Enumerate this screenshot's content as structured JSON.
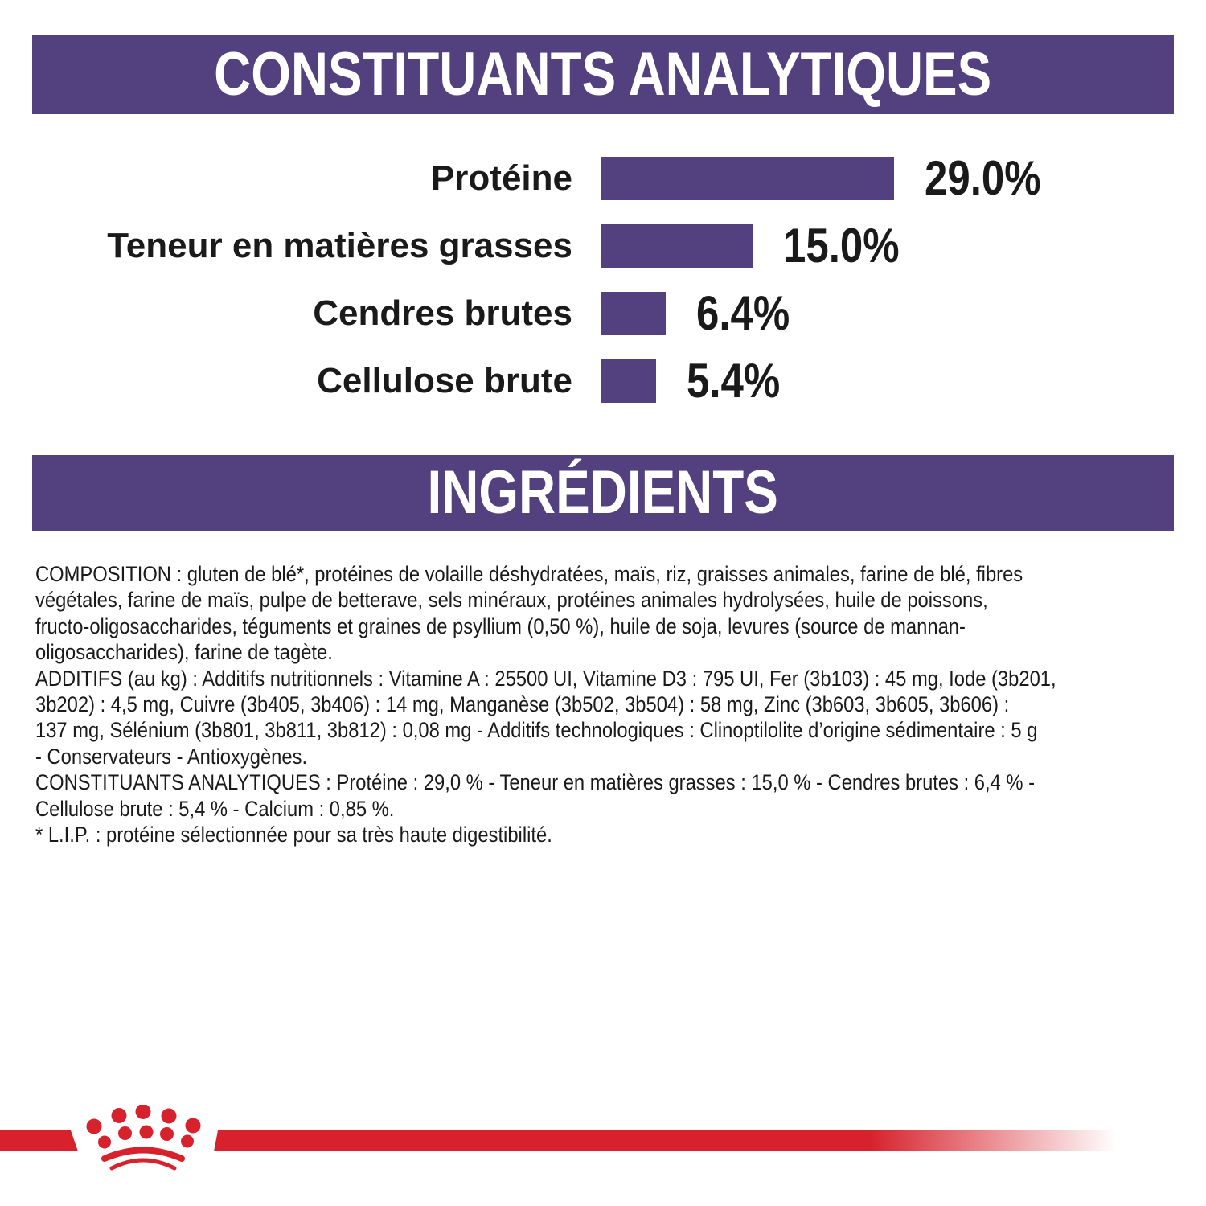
{
  "colors": {
    "purple": "#53407E",
    "red": "#D7222D",
    "text": "#1A1A1A"
  },
  "sections": {
    "analytiques_title": "CONSTITUANTS ANALYTIQUES",
    "ingredients_title": "INGRÉDIENTS"
  },
  "chart_data": {
    "type": "bar",
    "orientation": "horizontal",
    "title": "CONSTITUANTS ANALYTIQUES",
    "categories": [
      "Protéine",
      "Teneur en matières grasses",
      "Cendres brutes",
      "Cellulose brute"
    ],
    "values": [
      29.0,
      15.0,
      6.4,
      5.4
    ],
    "value_labels": [
      "29.0%",
      "15.0%",
      "6.4%",
      "5.4%"
    ],
    "unit": "%",
    "xlim": [
      0,
      29
    ],
    "bar_color": "#53407E",
    "grid": "off",
    "legend": "none"
  },
  "ingredients": {
    "composition": "COMPOSITION : gluten de blé*, protéines de volaille déshydratées, maïs, riz, graisses animales, farine de blé, fibres\nvégétales, farine de maïs, pulpe de betterave, sels minéraux, protéines animales hydrolysées, huile de poissons,\nfructo-oligosaccharides, téguments et graines de psyllium (0,50 %), huile de soja, levures (source de mannan-\noligosaccharides), farine de tagète.",
    "additifs": "ADDITIFS (au kg) : Additifs nutritionnels : Vitamine A : 25500 UI, Vitamine D3 : 795 UI, Fer (3b103) : 45 mg, Iode (3b201,\n3b202) : 4,5 mg, Cuivre (3b405, 3b406) : 14 mg, Manganèse (3b502, 3b504) : 58 mg, Zinc (3b603, 3b605, 3b606) :\n137 mg, Sélénium (3b801, 3b811, 3b812) : 0,08 mg - Additifs technologiques : Clinoptilolite d’origine sédimentaire : 5 g\n- Conservateurs - Antioxygènes.",
    "constituants": "CONSTITUANTS ANALYTIQUES : Protéine : 29,0 % - Teneur en matières grasses : 15,0 % - Cendres brutes : 6,4 % -\nCellulose brute : 5,4 % - Calcium : 0,85 %.",
    "lip_note": "* L.I.P. : protéine sélectionnée pour sa très haute digestibilité."
  },
  "footer": {
    "logo": "royal-canin-crown-icon"
  }
}
